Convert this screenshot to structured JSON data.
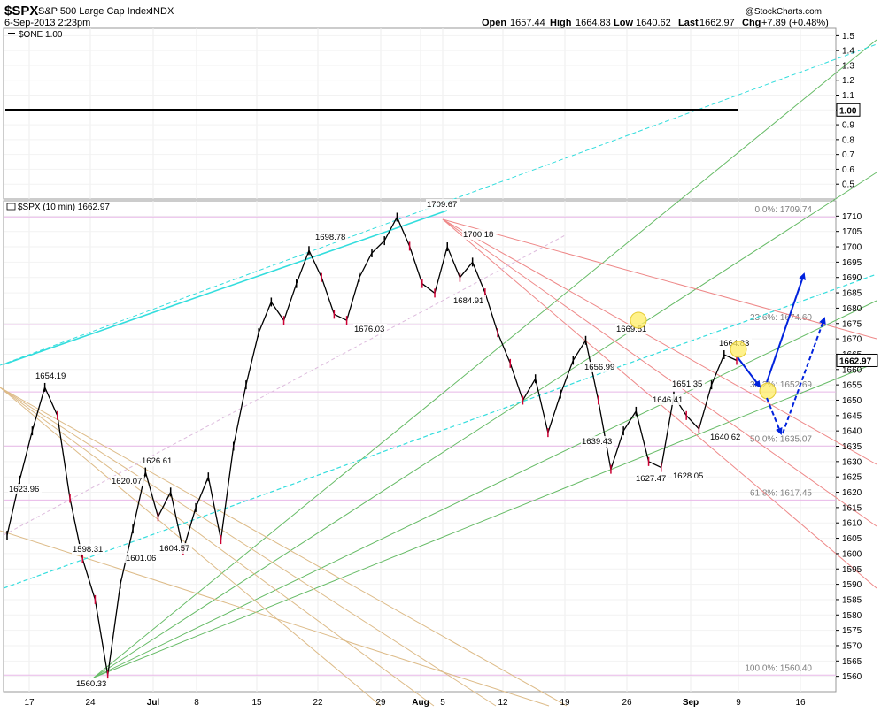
{
  "header": {
    "symbol": "$SPX",
    "name": "S&P 500 Large Cap Index",
    "exchange": "INDX",
    "date": "6-Sep-2013 2:23pm",
    "watermark": "@StockCharts.com",
    "open_label": "Open",
    "open": "1657.44",
    "high_label": "High",
    "high": "1664.83",
    "low_label": "Low",
    "low": "1640.62",
    "last_label": "Last",
    "last": "1662.97",
    "chg_label": "Chg",
    "chg": "+7.89 (+0.48%)"
  },
  "colors": {
    "price_up": "#000000",
    "price_down": "#cc0033",
    "cyan": "#33dddd",
    "green": "#66bb66",
    "salmon": "#ee8888",
    "tan": "#ddbb88",
    "fib_line": "#e8b8e8",
    "arrow": "#0022dd",
    "highlight": "#ffee66"
  },
  "chart_data": [
    {
      "type": "line",
      "panel": "upper",
      "legend": "$ONE 1.00",
      "series": [
        {
          "name": "$ONE",
          "values": [
            1.0,
            1.0
          ]
        }
      ],
      "ylim": [
        0.4,
        1.55
      ],
      "yticks": [
        "1.5",
        "1.4",
        "1.3",
        "1.2",
        "1.1",
        "1.0",
        "0.9",
        "0.8",
        "0.7",
        "0.6",
        "0.5"
      ],
      "last_value_badge": "1.00"
    },
    {
      "type": "line",
      "panel": "main",
      "legend": "$SPX (10 min) 1662.97",
      "ylim": [
        1555,
        1715
      ],
      "yticks": [
        "1710",
        "1705",
        "1700",
        "1695",
        "1690",
        "1685",
        "1680",
        "1675",
        "1670",
        "1665",
        "1660",
        "1655",
        "1650",
        "1645",
        "1640",
        "1635",
        "1630",
        "1625",
        "1620",
        "1615",
        "1610",
        "1605",
        "1600",
        "1595",
        "1590",
        "1585",
        "1580",
        "1575",
        "1570",
        "1565",
        "1560"
      ],
      "xticks": [
        "17",
        "24",
        "Jul",
        "8",
        "15",
        "22",
        "29",
        "Aug",
        "5",
        "12",
        "19",
        "26",
        "Sep",
        "9",
        "16"
      ],
      "last_value_badge": "1662.97",
      "fibonacci": [
        {
          "label": "0.0%: 1709.74",
          "value": 1709.74
        },
        {
          "label": "23.6%: 1674.60",
          "value": 1674.6
        },
        {
          "label": "38.2%: 1652.69",
          "value": 1652.69
        },
        {
          "label": "50.0%: 1635.07",
          "value": 1635.07
        },
        {
          "label": "61.8%: 1617.45",
          "value": 1617.45
        },
        {
          "label": "100.0%: 1560.40",
          "value": 1560.4
        }
      ],
      "annotations": [
        {
          "label": "1654.19",
          "value": 1654.19
        },
        {
          "label": "1623.96",
          "value": 1623.96
        },
        {
          "label": "1598.31",
          "value": 1598.31
        },
        {
          "label": "1560.33",
          "value": 1560.33
        },
        {
          "label": "1626.61",
          "value": 1626.61
        },
        {
          "label": "1620.07",
          "value": 1620.07
        },
        {
          "label": "1601.06",
          "value": 1601.06
        },
        {
          "label": "1604.57",
          "value": 1604.57
        },
        {
          "label": "1698.78",
          "value": 1698.78
        },
        {
          "label": "1676.03",
          "value": 1676.03
        },
        {
          "label": "1709.67",
          "value": 1709.67
        },
        {
          "label": "1700.18",
          "value": 1700.18
        },
        {
          "label": "1684.91",
          "value": 1684.91
        },
        {
          "label": "1669.51",
          "value": 1669.51
        },
        {
          "label": "1656.99",
          "value": 1656.99
        },
        {
          "label": "1639.43",
          "value": 1639.43
        },
        {
          "label": "1627.47",
          "value": 1627.47
        },
        {
          "label": "1646.41",
          "value": 1646.41
        },
        {
          "label": "1651.35",
          "value": 1651.35
        },
        {
          "label": "1628.05",
          "value": 1628.05
        },
        {
          "label": "1640.62",
          "value": 1640.62
        },
        {
          "label": "1664.83",
          "value": 1664.83
        }
      ],
      "series": [
        {
          "name": "$SPX",
          "values": [
            1606,
            1623.96,
            1640,
            1654.19,
            1645,
            1618,
            1598.31,
            1585,
            1560.33,
            1590,
            1608,
            1626.61,
            1612,
            1620.07,
            1601.06,
            1615,
            1625,
            1604.57,
            1635,
            1655,
            1672,
            1682,
            1676,
            1688,
            1698.78,
            1690,
            1678,
            1676.03,
            1690,
            1698,
            1702,
            1709.67,
            1700.18,
            1688,
            1684.91,
            1700,
            1690,
            1695,
            1685,
            1672,
            1662,
            1650,
            1656.99,
            1639.43,
            1652,
            1663,
            1669.51,
            1650,
            1627.47,
            1640,
            1646.41,
            1630,
            1628.05,
            1651.35,
            1645,
            1640.62,
            1655,
            1664.83,
            1662.97
          ]
        }
      ]
    }
  ]
}
